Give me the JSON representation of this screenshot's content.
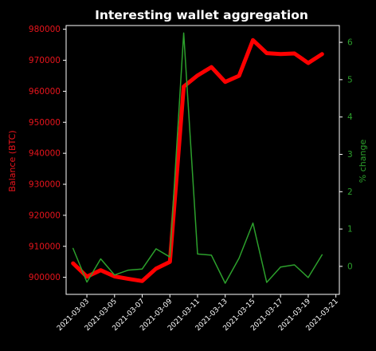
{
  "chart_data": {
    "type": "line",
    "title": "Interesting wallet aggregation",
    "ylabel_left": "Balance (BTC)",
    "ylabel_right": "% change",
    "xlabel": "",
    "x": [
      "2021-03-02",
      "2021-03-03",
      "2021-03-04",
      "2021-03-05",
      "2021-03-06",
      "2021-03-07",
      "2021-03-08",
      "2021-03-09",
      "2021-03-10",
      "2021-03-11",
      "2021-03-12",
      "2021-03-13",
      "2021-03-14",
      "2021-03-15",
      "2021-03-16",
      "2021-03-17",
      "2021-03-18",
      "2021-03-19",
      "2021-03-20"
    ],
    "xticks": [
      "2021-03-03",
      "2021-03-05",
      "2021-03-07",
      "2021-03-09",
      "2021-03-11",
      "2021-03-13",
      "2021-03-15",
      "2021-03-17",
      "2021-03-19",
      "2021-03-21"
    ],
    "xlim": [
      "2021-03-01T12:00",
      "2021-03-21T06:00"
    ],
    "yticks_left": [
      "900000",
      "910000",
      "920000",
      "930000",
      "940000",
      "950000",
      "960000",
      "970000",
      "980000"
    ],
    "yticks_right": [
      "0",
      "1",
      "2",
      "3",
      "4",
      "5",
      "6"
    ],
    "ylim_left": [
      894500,
      981200
    ],
    "ylim_right": [
      -0.75,
      6.45
    ],
    "series": [
      {
        "axis": "left",
        "color": "#ff0000",
        "values": [
          904500,
          900200,
          902300,
          900300,
          899500,
          898800,
          902800,
          905000,
          961500,
          965100,
          967800,
          963000,
          965000,
          976500,
          972300,
          972000,
          972200,
          969100,
          972000
        ]
      },
      {
        "axis": "right",
        "color": "#2ca02c",
        "values": [
          0.48,
          -0.42,
          0.2,
          -0.23,
          -0.1,
          -0.07,
          0.47,
          0.25,
          6.25,
          0.33,
          0.3,
          -0.45,
          0.22,
          1.16,
          -0.43,
          -0.02,
          0.04,
          -0.3,
          0.31
        ]
      }
    ]
  }
}
